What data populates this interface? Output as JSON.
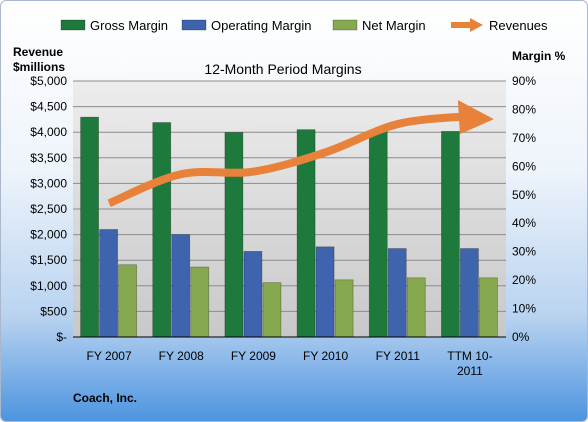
{
  "chart_data": {
    "type": "bar",
    "title": "12-Month Period Margins",
    "company": "Coach, Inc.",
    "ylabel_left": [
      "Revenue",
      "$millions"
    ],
    "ylabel_right": "Margin %",
    "categories": [
      [
        "FY 2007"
      ],
      [
        "FY 2008"
      ],
      [
        "FY 2009"
      ],
      [
        "FY 2010"
      ],
      [
        "FY 2011"
      ],
      [
        "TTM 10-",
        "2011"
      ]
    ],
    "ylim_left": [
      0,
      5000
    ],
    "ylim_right": [
      0,
      90
    ],
    "y_left_ticks": [
      "$-",
      "$500",
      "$1,000",
      "$1,500",
      "$2,000",
      "$2,500",
      "$3,000",
      "$3,500",
      "$4,000",
      "$4,500",
      "$5,000"
    ],
    "y_right_ticks": [
      "0%",
      "10%",
      "20%",
      "30%",
      "40%",
      "50%",
      "60%",
      "70%",
      "80%",
      "90%"
    ],
    "grid": true,
    "legend_position": "top",
    "series": [
      {
        "name": "Gross Margin",
        "type": "bar",
        "axis": "right",
        "color": "#1e7a3c",
        "values": [
          77.3,
          75.4,
          71.9,
          72.9,
          72.6,
          72.3
        ]
      },
      {
        "name": "Operating Margin",
        "type": "bar",
        "axis": "right",
        "color": "#3e64ad",
        "values": [
          37.8,
          36.0,
          30.1,
          31.7,
          31.1,
          31.1
        ]
      },
      {
        "name": "Net Margin",
        "type": "bar",
        "axis": "right",
        "color": "#86a84e",
        "values": [
          25.4,
          24.6,
          19.1,
          20.1,
          20.8,
          20.8
        ]
      },
      {
        "name": "Revenues",
        "type": "line",
        "axis": "left",
        "color": "#e8823a",
        "values": [
          2613,
          3181,
          3230,
          3608,
          4159,
          4313
        ]
      }
    ]
  }
}
